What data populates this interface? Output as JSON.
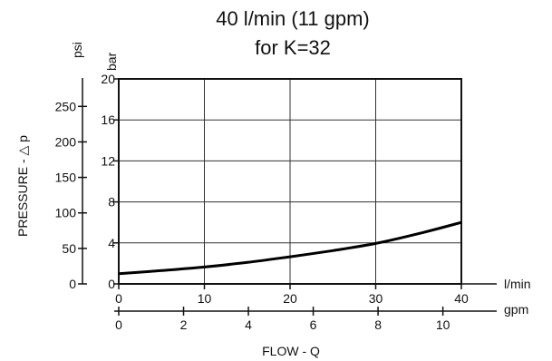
{
  "chart_data": {
    "type": "line",
    "title_line1": "40 l/min (11 gpm)",
    "title_line2": "for K=32",
    "ylabel": "PRESSURE - △ p",
    "xlabel": "FLOW - Q",
    "y_bar_unit": "bar",
    "y_psi_unit": "psi",
    "x_lmin_unit": "l/min",
    "x_gpm_unit": "gpm",
    "x_lmin": {
      "range": [
        0,
        40
      ],
      "ticks": [
        0,
        10,
        20,
        30,
        40
      ]
    },
    "x_gpm": {
      "range": [
        0,
        10.57
      ],
      "ticks": [
        0,
        2,
        4,
        6,
        8,
        10
      ]
    },
    "y_bar": {
      "range": [
        0,
        20
      ],
      "ticks": [
        0,
        4,
        8,
        12,
        16,
        20
      ]
    },
    "y_psi": {
      "range": [
        0,
        290
      ],
      "ticks": [
        0,
        50,
        100,
        150,
        200,
        250
      ]
    },
    "grid": true,
    "series": [
      {
        "x": [
          0,
          5,
          10,
          15,
          20,
          25,
          30,
          35,
          40
        ],
        "y": [
          1.0,
          1.3,
          1.65,
          2.1,
          2.65,
          3.25,
          3.95,
          4.9,
          6.0
        ]
      }
    ]
  }
}
